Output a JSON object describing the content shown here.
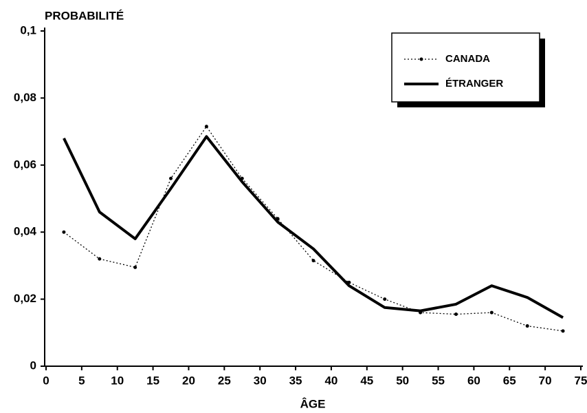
{
  "chart_data": {
    "type": "line",
    "title": "PROBABILITÉ",
    "xlabel": "ÂGE",
    "x": [
      2.5,
      7.5,
      12.5,
      17.5,
      22.5,
      27.5,
      32.5,
      37.5,
      42.5,
      47.5,
      52.5,
      57.5,
      62.5,
      67.5,
      72.5
    ],
    "series": [
      {
        "name": "CANADA",
        "color": "#000000",
        "style": "dotted",
        "values": [
          0.04,
          0.032,
          0.0295,
          0.056,
          0.0715,
          0.056,
          0.044,
          0.0315,
          0.025,
          0.02,
          0.016,
          0.0155,
          0.016,
          0.012,
          0.0105
        ]
      },
      {
        "name": "ÉTRANGER",
        "color": "#000000",
        "style": "solid",
        "values": [
          0.068,
          0.046,
          0.038,
          0.053,
          0.0685,
          0.055,
          0.043,
          0.035,
          0.024,
          0.0175,
          0.0165,
          0.0185,
          0.024,
          0.0205,
          0.0145
        ]
      }
    ],
    "xlim": [
      0,
      75
    ],
    "xticks": [
      0,
      5,
      10,
      15,
      20,
      25,
      30,
      35,
      40,
      45,
      50,
      55,
      60,
      65,
      70,
      75
    ],
    "ylim": [
      0,
      0.1
    ],
    "yticks": [
      0,
      {
        "value": 0.02,
        "label": "0,02"
      },
      {
        "value": 0.04,
        "label": "0,04"
      },
      {
        "value": 0.06,
        "label": "0,06"
      },
      {
        "value": 0.08,
        "label": "0,08"
      },
      {
        "value": 0.1,
        "label": "0,1"
      }
    ],
    "legend": "upper right"
  }
}
